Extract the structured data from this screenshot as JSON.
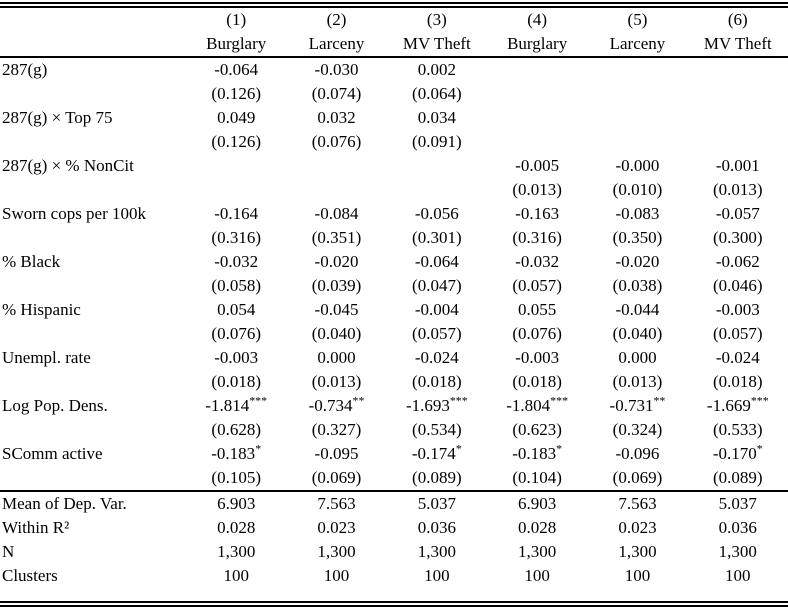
{
  "table": {
    "header": {
      "numbers": [
        "(1)",
        "(2)",
        "(3)",
        "(4)",
        "(5)",
        "(6)"
      ],
      "outcomes": [
        "Burglary",
        "Larceny",
        "MV Theft",
        "Burglary",
        "Larceny",
        "MV Theft"
      ]
    },
    "coefficient_rows": [
      {
        "label": "287(g)",
        "coefs": [
          "-0.064",
          "-0.030",
          "0.002",
          "",
          "",
          ""
        ],
        "ses": [
          "(0.126)",
          "(0.074)",
          "(0.064)",
          "",
          "",
          ""
        ]
      },
      {
        "label": "287(g) × Top 75",
        "coefs": [
          "0.049",
          "0.032",
          "0.034",
          "",
          "",
          ""
        ],
        "ses": [
          "(0.126)",
          "(0.076)",
          "(0.091)",
          "",
          "",
          ""
        ]
      },
      {
        "label": "287(g) × % NonCit",
        "coefs": [
          "",
          "",
          "",
          "-0.005",
          "-0.000",
          "-0.001"
        ],
        "ses": [
          "",
          "",
          "",
          "(0.013)",
          "(0.010)",
          "(0.013)"
        ]
      },
      {
        "label": "Sworn cops per 100k",
        "coefs": [
          "-0.164",
          "-0.084",
          "-0.056",
          "-0.163",
          "-0.083",
          "-0.057"
        ],
        "ses": [
          "(0.316)",
          "(0.351)",
          "(0.301)",
          "(0.316)",
          "(0.350)",
          "(0.300)"
        ]
      },
      {
        "label": "% Black",
        "coefs": [
          "-0.032",
          "-0.020",
          "-0.064",
          "-0.032",
          "-0.020",
          "-0.062"
        ],
        "ses": [
          "(0.058)",
          "(0.039)",
          "(0.047)",
          "(0.057)",
          "(0.038)",
          "(0.046)"
        ]
      },
      {
        "label": "% Hispanic",
        "coefs": [
          "0.054",
          "-0.045",
          "-0.004",
          "0.055",
          "-0.044",
          "-0.003"
        ],
        "ses": [
          "(0.076)",
          "(0.040)",
          "(0.057)",
          "(0.076)",
          "(0.040)",
          "(0.057)"
        ]
      },
      {
        "label": "Unempl. rate",
        "coefs": [
          "-0.003",
          "0.000",
          "-0.024",
          "-0.003",
          "0.000",
          "-0.024"
        ],
        "ses": [
          "(0.018)",
          "(0.013)",
          "(0.018)",
          "(0.018)",
          "(0.013)",
          "(0.018)"
        ]
      },
      {
        "label": "Log Pop. Dens.",
        "coefs": [
          "-1.814***",
          "-0.734**",
          "-1.693***",
          "-1.804***",
          "-0.731**",
          "-1.669***"
        ],
        "ses": [
          "(0.628)",
          "(0.327)",
          "(0.534)",
          "(0.623)",
          "(0.324)",
          "(0.533)"
        ]
      },
      {
        "label": "SComm active",
        "coefs": [
          "-0.183*",
          "-0.095",
          "-0.174*",
          "-0.183*",
          "-0.096",
          "-0.170*"
        ],
        "ses": [
          "(0.105)",
          "(0.069)",
          "(0.089)",
          "(0.104)",
          "(0.069)",
          "(0.089)"
        ]
      }
    ],
    "summary_rows": [
      {
        "label": "Mean of Dep. Var.",
        "values": [
          "6.903",
          "7.563",
          "5.037",
          "6.903",
          "7.563",
          "5.037"
        ]
      },
      {
        "label": "Within R²",
        "values": [
          "0.028",
          "0.023",
          "0.036",
          "0.028",
          "0.023",
          "0.036"
        ]
      },
      {
        "label": "N",
        "values": [
          "1,300",
          "1,300",
          "1,300",
          "1,300",
          "1,300",
          "1,300"
        ]
      },
      {
        "label": "Clusters",
        "values": [
          "100",
          "100",
          "100",
          "100",
          "100",
          "100"
        ]
      }
    ]
  }
}
